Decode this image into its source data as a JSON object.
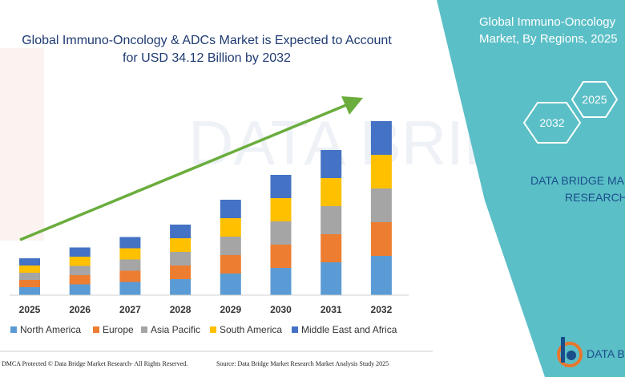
{
  "title": {
    "line1": "Global Immuno-Oncology & ADCs Market is Expected to Account",
    "line2": "for USD 34.12 Billion by 2032"
  },
  "side_panel": {
    "title_line1": "Global Immuno-Oncology",
    "title_line2": "Market, By Regions, 2025",
    "hex_2025": "2025",
    "hex_2032": "2032",
    "brand_line1": "DATA BRIDGE MA",
    "brand_line2": "RESEARCH",
    "bg_color": "#5bbfc7"
  },
  "footer": {
    "left": "DMCA Protected © Data Bridge Market Research- All Rights Reserved.",
    "right": "Source: Data Bridge Market Research Market Analysis Study 2025"
  },
  "logo": {
    "text": "DATA B",
    "icon": "data-bridge-logo-icon"
  },
  "chart_data": {
    "type": "bar",
    "stacked": true,
    "title": "",
    "categories": [
      "2025",
      "2026",
      "2027",
      "2028",
      "2029",
      "2030",
      "2031",
      "2032"
    ],
    "series": [
      {
        "name": "North America",
        "color": "#5b9bd5",
        "values": [
          10,
          13.5,
          16.5,
          20,
          27,
          34,
          41,
          49
        ]
      },
      {
        "name": "Europe",
        "color": "#ed7d31",
        "values": [
          9,
          11.5,
          14,
          17,
          23,
          29,
          35,
          42
        ]
      },
      {
        "name": "Asia Pacific",
        "color": "#a5a5a5",
        "values": [
          9,
          11.5,
          14,
          17,
          23,
          29,
          35,
          42
        ]
      },
      {
        "name": "South America",
        "color": "#ffc000",
        "values": [
          9,
          11.5,
          14,
          17,
          23,
          29,
          35,
          42
        ]
      },
      {
        "name": "Middle East and Africa",
        "color": "#4472c4",
        "values": [
          9,
          11.5,
          14,
          17,
          23,
          29,
          35,
          42
        ]
      }
    ],
    "trend_arrow": {
      "color": "#6aad3d"
    },
    "legend_position": "bottom",
    "grid": false
  }
}
